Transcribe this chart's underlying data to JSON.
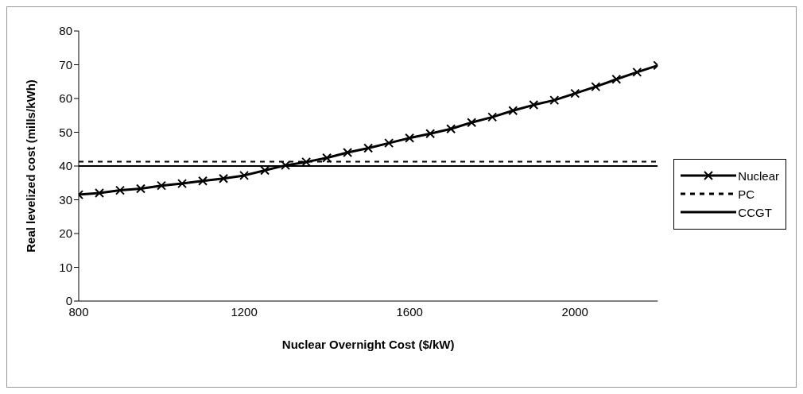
{
  "chart_data": {
    "type": "line",
    "xlabel": "Nuclear Overnight Cost ($/kW)",
    "ylabel": "Real levelized cost (mills/kWh)",
    "xlim": [
      800,
      2200
    ],
    "xticks": [
      800,
      1200,
      1600,
      2000
    ],
    "ylim": [
      0,
      80
    ],
    "yticks": [
      0,
      10,
      20,
      30,
      40,
      50,
      60,
      70,
      80
    ],
    "grid": false,
    "legend": "right",
    "series": [
      {
        "name": "Nuclear",
        "color": "#000000",
        "marker": "cross",
        "line_style": "solid",
        "x": [
          800,
          850,
          900,
          950,
          1000,
          1050,
          1100,
          1150,
          1200,
          1250,
          1300,
          1350,
          1400,
          1450,
          1500,
          1550,
          1600,
          1650,
          1700,
          1750,
          1800,
          1850,
          1900,
          1950,
          2000,
          2050,
          2100,
          2150,
          2200
        ],
        "values": [
          31.5,
          32,
          32.8,
          33.3,
          34.2,
          34.8,
          35.6,
          36.3,
          37.2,
          38.7,
          40.2,
          41.2,
          42.4,
          44,
          45.3,
          46.8,
          48.3,
          49.6,
          51,
          52.9,
          54.5,
          56.4,
          58.1,
          59.5,
          61.5,
          63.5,
          65.7,
          67.8,
          69.8
        ]
      },
      {
        "name": "PC",
        "color": "#000000",
        "marker": "none",
        "line_style": "dashed",
        "x": [
          800,
          2200
        ],
        "values": [
          41.3,
          41.3
        ]
      },
      {
        "name": "CCGT",
        "color": "#000000",
        "marker": "none",
        "line_style": "solid",
        "x": [
          800,
          2200
        ],
        "values": [
          40,
          40
        ]
      }
    ]
  }
}
